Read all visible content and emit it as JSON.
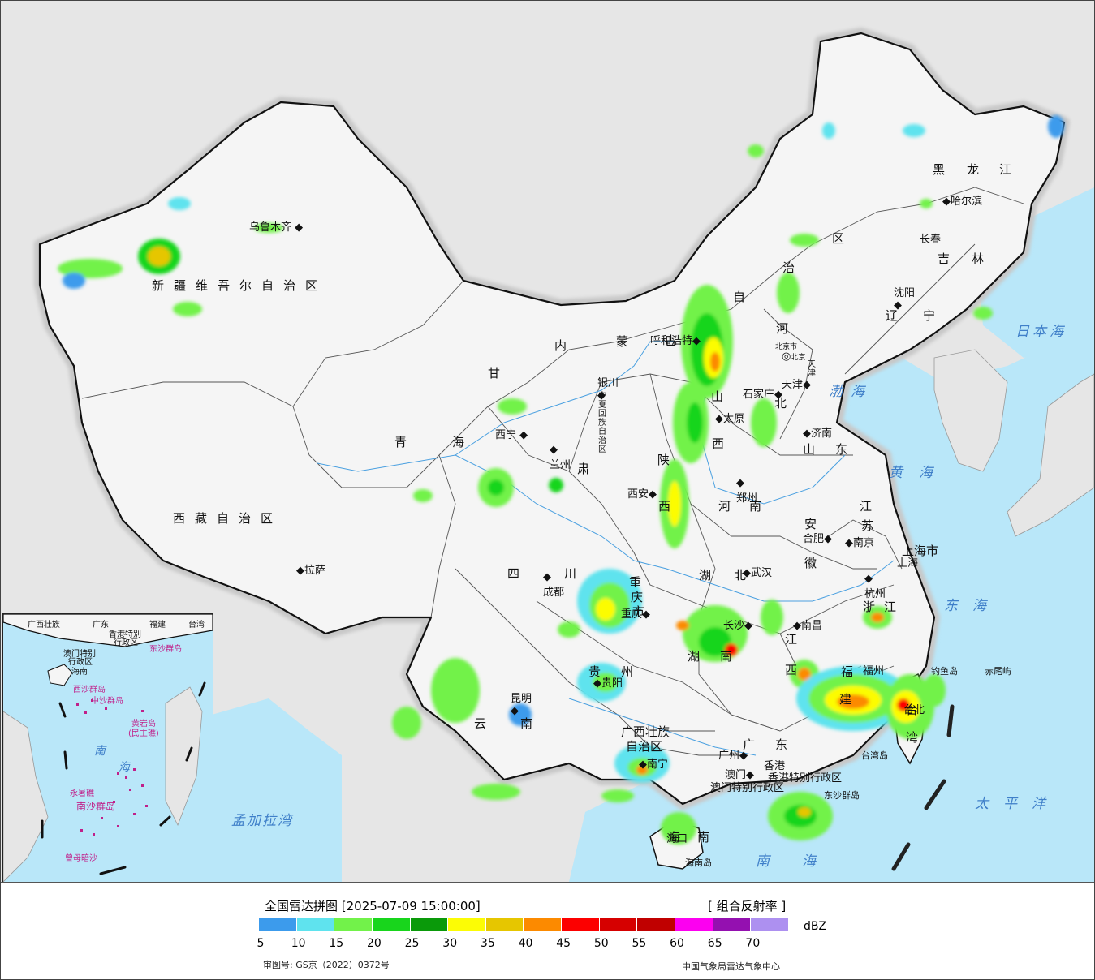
{
  "map": {
    "title": "全国雷达拼图 [2025-07-09 15:00:00]",
    "product": "[ 组合反射率 ]",
    "unit": "dBZ",
    "review_number": "审图号: GS京（2022）0372号",
    "producer": "中国气象局雷达气象中心",
    "colors": {
      "land": "#f4f4f4",
      "sea": "#b9e7f9",
      "neighbor": "#e6e6e6",
      "border": "#111111"
    }
  },
  "legend": {
    "colors": [
      "#3c9bec",
      "#5fe3ee",
      "#72f24a",
      "#18d51c",
      "#0a9a0a",
      "#fcfc05",
      "#e6c600",
      "#fc8a00",
      "#fc0000",
      "#d60000",
      "#c00000",
      "#fc00f0",
      "#9410b0",
      "#ad90f0"
    ],
    "ticks": [
      "5",
      "10",
      "15",
      "20",
      "25",
      "30",
      "35",
      "40",
      "45",
      "50",
      "55",
      "60",
      "65",
      "70"
    ]
  },
  "labels": {
    "provinces": [
      {
        "text": "新疆维吾尔自治区"
      },
      {
        "text": "西藏自治区"
      },
      {
        "text": "青"
      },
      {
        "text": "海"
      },
      {
        "text": "甘"
      },
      {
        "text": "肃"
      },
      {
        "text": "内"
      },
      {
        "text": "蒙"
      },
      {
        "text": "古"
      },
      {
        "text": "自"
      },
      {
        "text": "治"
      },
      {
        "text": "区"
      },
      {
        "text": "黑"
      },
      {
        "text": "龙"
      },
      {
        "text": "江"
      },
      {
        "text": "吉"
      },
      {
        "text": "林"
      },
      {
        "text": "辽"
      },
      {
        "text": "宁"
      },
      {
        "text": "河"
      },
      {
        "text": "北"
      },
      {
        "text": "山"
      },
      {
        "text": "西"
      },
      {
        "text": "山"
      },
      {
        "text": "东"
      },
      {
        "text": "河"
      },
      {
        "text": "南"
      },
      {
        "text": "陕"
      },
      {
        "text": "西"
      },
      {
        "text": "四"
      },
      {
        "text": "川"
      },
      {
        "text": "重"
      },
      {
        "text": "庆"
      },
      {
        "text": "市"
      },
      {
        "text": "湖"
      },
      {
        "text": "北"
      },
      {
        "text": "湖"
      },
      {
        "text": "南"
      },
      {
        "text": "贵"
      },
      {
        "text": "州"
      },
      {
        "text": "云"
      },
      {
        "text": "南"
      },
      {
        "text": "广西壮族"
      },
      {
        "text": "自治区"
      },
      {
        "text": "广"
      },
      {
        "text": "东"
      },
      {
        "text": "江"
      },
      {
        "text": "西"
      },
      {
        "text": "安"
      },
      {
        "text": "徽"
      },
      {
        "text": "江"
      },
      {
        "text": "苏"
      },
      {
        "text": "浙"
      },
      {
        "text": "江"
      },
      {
        "text": "福"
      },
      {
        "text": "建"
      },
      {
        "text": "台"
      },
      {
        "text": "湾"
      },
      {
        "text": "上海市"
      },
      {
        "text": "宁夏回族自治区"
      },
      {
        "text": "天津"
      },
      {
        "text": "北京市"
      },
      {
        "text": "海"
      },
      {
        "text": "南"
      },
      {
        "text": "香港特别行政区"
      },
      {
        "text": "澳门特别行政区"
      }
    ],
    "cities": [
      {
        "text": "乌鲁木齐"
      },
      {
        "text": "拉萨"
      },
      {
        "text": "西宁"
      },
      {
        "text": "兰州"
      },
      {
        "text": "银川"
      },
      {
        "text": "呼和浩特"
      },
      {
        "text": "北京"
      },
      {
        "text": "天津"
      },
      {
        "text": "石家庄"
      },
      {
        "text": "太原"
      },
      {
        "text": "济南"
      },
      {
        "text": "郑州"
      },
      {
        "text": "西安"
      },
      {
        "text": "成都"
      },
      {
        "text": "重庆"
      },
      {
        "text": "武汉"
      },
      {
        "text": "合肥"
      },
      {
        "text": "南京"
      },
      {
        "text": "上海"
      },
      {
        "text": "杭州"
      },
      {
        "text": "南昌"
      },
      {
        "text": "长沙"
      },
      {
        "text": "贵阳"
      },
      {
        "text": "昆明"
      },
      {
        "text": "南宁"
      },
      {
        "text": "广州"
      },
      {
        "text": "香港"
      },
      {
        "text": "澳门"
      },
      {
        "text": "福州"
      },
      {
        "text": "台北"
      },
      {
        "text": "哈尔滨"
      },
      {
        "text": "长春"
      },
      {
        "text": "沈阳"
      },
      {
        "text": "海口"
      }
    ],
    "seas": [
      {
        "text": "日本海"
      },
      {
        "text": "渤海"
      },
      {
        "text": "黄海"
      },
      {
        "text": "东海"
      },
      {
        "text": "太平洋"
      },
      {
        "text": "南海"
      },
      {
        "text": "孟加拉湾"
      }
    ],
    "islands": [
      {
        "text": "钓鱼岛"
      },
      {
        "text": "赤尾屿"
      },
      {
        "text": "台湾岛"
      },
      {
        "text": "东沙群岛"
      },
      {
        "text": "海南岛"
      }
    ],
    "inset": [
      {
        "text": "广西壮族"
      },
      {
        "text": "广东"
      },
      {
        "text": "福建"
      },
      {
        "text": "台湾"
      },
      {
        "text": "香港特别"
      },
      {
        "text": "行政区"
      },
      {
        "text": "澳门特别"
      },
      {
        "text": "行政区"
      },
      {
        "text": "东沙群岛"
      },
      {
        "text": "海南"
      },
      {
        "text": "西沙群岛"
      },
      {
        "text": "中沙群岛"
      },
      {
        "text": "黄岩岛"
      },
      {
        "text": "(民主礁)"
      },
      {
        "text": "南"
      },
      {
        "text": "海"
      },
      {
        "text": "永暑礁"
      },
      {
        "text": "南沙群岛"
      },
      {
        "text": "曾母暗沙"
      }
    ]
  }
}
